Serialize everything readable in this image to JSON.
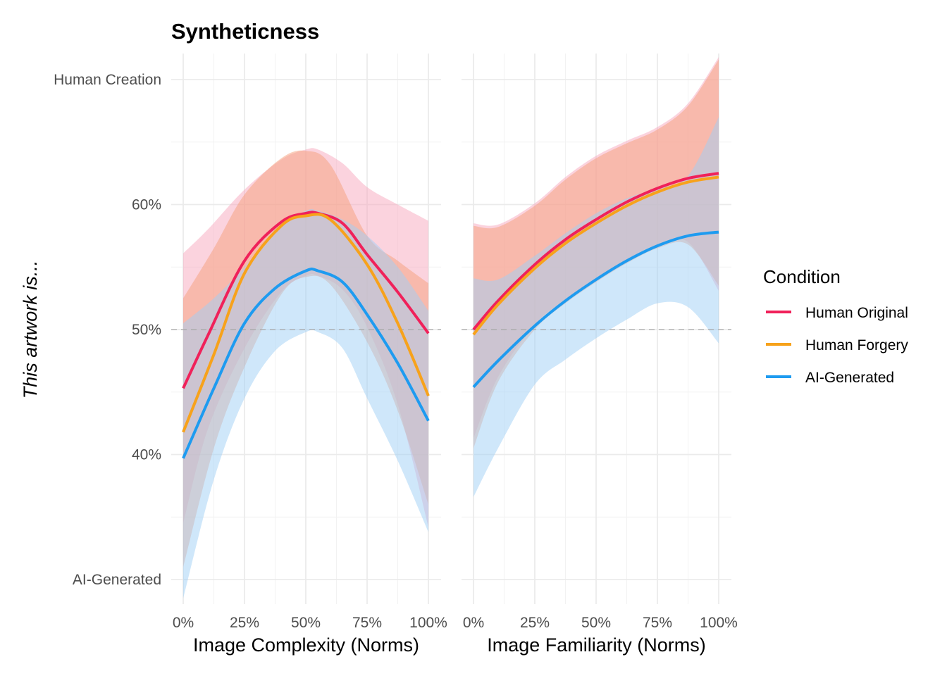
{
  "chart_data": {
    "type": "line",
    "title": "Syntheticness",
    "ylabel": "This artwork is...",
    "ylim": [
      30,
      70
    ],
    "y_ticks": [
      {
        "value": 30,
        "label": "AI-Generated"
      },
      {
        "value": 40,
        "label": "40%"
      },
      {
        "value": 50,
        "label": "50%"
      },
      {
        "value": 60,
        "label": "60%"
      },
      {
        "value": 70,
        "label": "Human Creation"
      }
    ],
    "reference_line": {
      "value": 50,
      "style": "dashed"
    },
    "legend": {
      "title": "Condition",
      "position": "right",
      "entries": [
        {
          "name": "Human Original",
          "color": "#f0215a"
        },
        {
          "name": "Human Forgery",
          "color": "#f7a21b"
        },
        {
          "name": "AI-Generated",
          "color": "#1e9bf0"
        }
      ]
    },
    "band_colors": {
      "Human Original": "#f7a8bd",
      "Human Forgery": "#f5a07a",
      "AI-Generated": "#9fd0f5"
    },
    "panels": [
      {
        "xlabel": "Image Complexity (Norms)",
        "xlim": [
          0,
          100
        ],
        "x_ticks": [
          "0%",
          "25%",
          "50%",
          "75%",
          "100%"
        ],
        "series": [
          {
            "name": "Human Original",
            "x": [
              0,
              10,
              25,
              40,
              50,
              55,
              65,
              75,
              87.5,
              100
            ],
            "y": [
              45.3,
              49.5,
              55.5,
              58.6,
              59.3,
              59.3,
              58.5,
              56.0,
              53.0,
              49.7
            ],
            "upper": [
              56.1,
              58.0,
              61.2,
              63.6,
              64.4,
              64.4,
              63.3,
              61.4,
              60.0,
              58.7
            ],
            "lower": [
              34.5,
              42.0,
              48.5,
              53.0,
              54.3,
              54.3,
              53.2,
              50.2,
              44.0,
              34.2
            ]
          },
          {
            "name": "Human Forgery",
            "x": [
              0,
              12.5,
              25,
              40,
              50,
              60,
              75,
              87.5,
              100
            ],
            "y": [
              41.8,
              48.0,
              54.5,
              58.3,
              59.1,
              58.8,
              55.2,
              50.5,
              44.7
            ],
            "upper": [
              52.5,
              56.5,
              60.8,
              63.7,
              64.3,
              63.2,
              57.5,
              55.5,
              53.7
            ],
            "lower": [
              31.0,
              40.5,
              47.0,
              52.8,
              54.2,
              53.6,
              49.0,
              43.5,
              36.0
            ]
          },
          {
            "name": "AI-Generated",
            "x": [
              0,
              12.5,
              25,
              37.5,
              50,
              55,
              65,
              75,
              87.5,
              100
            ],
            "y": [
              39.7,
              45.3,
              50.5,
              53.3,
              54.7,
              54.7,
              53.8,
              51.2,
              47.3,
              42.7
            ],
            "upper": [
              50.5,
              52.5,
              55.0,
              58.0,
              59.5,
              59.5,
              58.8,
              57.5,
              55.0,
              51.5
            ],
            "lower": [
              28.5,
              38.0,
              44.5,
              48.3,
              49.8,
              49.8,
              48.5,
              44.5,
              39.5,
              33.8
            ]
          }
        ]
      },
      {
        "xlabel": "Image Familiarity (Norms)",
        "xlim": [
          0,
          100
        ],
        "x_ticks": [
          "0%",
          "25%",
          "50%",
          "75%",
          "100%"
        ],
        "series": [
          {
            "name": "Human Original",
            "x": [
              0,
              10,
              25,
              37.5,
              50,
              62.5,
              75,
              87.5,
              100
            ],
            "y": [
              50.0,
              52.3,
              55.2,
              57.2,
              58.8,
              60.2,
              61.3,
              62.1,
              62.5
            ],
            "upper": [
              58.5,
              58.4,
              60.1,
              62.2,
              63.9,
              65.1,
              66.2,
              68.1,
              71.8
            ],
            "lower": [
              41.3,
              46.2,
              50.4,
              52.4,
              54.1,
              55.6,
              56.8,
              57.0,
              53.1
            ]
          },
          {
            "name": "Human Forgery",
            "x": [
              0,
              10,
              25,
              37.5,
              50,
              62.5,
              75,
              87.5,
              100
            ],
            "y": [
              49.6,
              52.0,
              54.9,
              56.9,
              58.5,
              59.9,
              61.0,
              61.8,
              62.2
            ],
            "upper": [
              58.3,
              58.2,
              59.9,
              62.0,
              63.7,
              64.9,
              66.0,
              67.9,
              71.6
            ],
            "lower": [
              40.5,
              45.8,
              50.0,
              52.1,
              53.8,
              55.3,
              56.5,
              56.8,
              53.5
            ]
          },
          {
            "name": "AI-Generated",
            "x": [
              0,
              10,
              25,
              37.5,
              50,
              62.5,
              75,
              87.5,
              100
            ],
            "y": [
              45.4,
              47.5,
              50.3,
              52.3,
              54.0,
              55.5,
              56.7,
              57.5,
              57.8
            ],
            "upper": [
              54.1,
              54.0,
              55.9,
              57.7,
              59.3,
              60.5,
              61.3,
              62.3,
              67.0
            ],
            "lower": [
              36.6,
              40.5,
              45.6,
              47.6,
              49.3,
              50.8,
              52.1,
              51.8,
              48.9
            ]
          }
        ]
      }
    ]
  }
}
